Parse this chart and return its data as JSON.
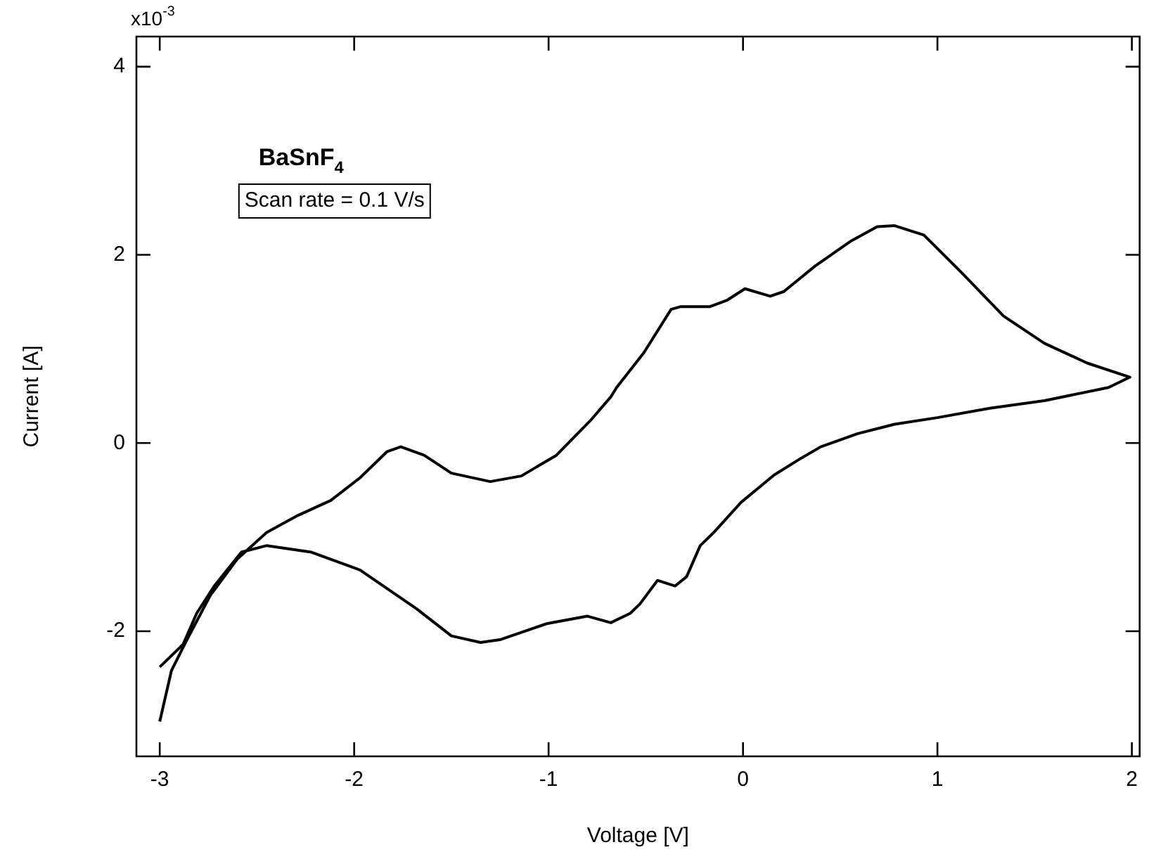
{
  "chart_data": {
    "type": "line",
    "xlabel": "Voltage [V]",
    "ylabel": "Current [A]",
    "annotations": [
      "BaSnF$_{4}$",
      "Scan rate = 0.1 V/s",
      "x10$^{-3}$"
    ],
    "xlim": [
      -3.12,
      2.04
    ],
    "ylim": [
      -3.33,
      4.32
    ],
    "xticks": [
      -3,
      -2,
      -1,
      0,
      1,
      2
    ],
    "yticks": [
      -2,
      0,
      2,
      4
    ],
    "grid": false,
    "legend": false,
    "marker": "none",
    "series": [
      {
        "color": "#000000",
        "x": [
          -3.0,
          -2.94,
          -2.86,
          -2.74,
          -2.6,
          -2.45,
          -2.29,
          -2.12,
          -1.97,
          -1.83,
          -1.76,
          -1.64,
          -1.5,
          -1.3,
          -1.14,
          -0.96,
          -0.78,
          -0.68,
          -0.65,
          -0.51,
          -0.37,
          -0.32,
          -0.17,
          -0.08,
          0.01,
          0.14,
          0.21,
          0.37,
          0.55,
          0.69,
          0.78,
          0.93,
          1.12,
          1.34,
          1.55,
          1.77,
          1.99,
          1.88,
          1.55,
          1.27,
          1.0,
          0.78,
          0.59,
          0.4,
          0.3,
          0.16,
          -0.01,
          -0.15,
          -0.22,
          -0.29,
          -0.35,
          -0.44,
          -0.53,
          -0.58,
          -0.68,
          -0.8,
          -1.01,
          -1.25,
          -1.35,
          -1.5,
          -1.68,
          -1.97,
          -2.22,
          -2.45,
          -2.58,
          -2.72,
          -2.81,
          -2.88,
          -3.0
        ],
        "values": [
          -2.96,
          -2.42,
          -2.09,
          -1.62,
          -1.23,
          -0.95,
          -0.77,
          -0.61,
          -0.37,
          -0.09,
          -0.04,
          -0.13,
          -0.32,
          -0.41,
          -0.35,
          -0.13,
          0.25,
          0.49,
          0.59,
          0.96,
          1.42,
          1.45,
          1.45,
          1.52,
          1.64,
          1.56,
          1.61,
          1.88,
          2.14,
          2.3,
          2.31,
          2.21,
          1.82,
          1.35,
          1.06,
          0.85,
          0.7,
          0.59,
          0.45,
          0.37,
          0.27,
          0.2,
          0.1,
          -0.04,
          -0.16,
          -0.34,
          -0.63,
          -0.95,
          -1.09,
          -1.42,
          -1.52,
          -1.46,
          -1.71,
          -1.81,
          -1.91,
          -1.84,
          -1.92,
          -2.09,
          -2.12,
          -2.05,
          -1.76,
          -1.35,
          -1.16,
          -1.09,
          -1.16,
          -1.52,
          -1.81,
          -2.14,
          -2.38
        ]
      }
    ]
  }
}
